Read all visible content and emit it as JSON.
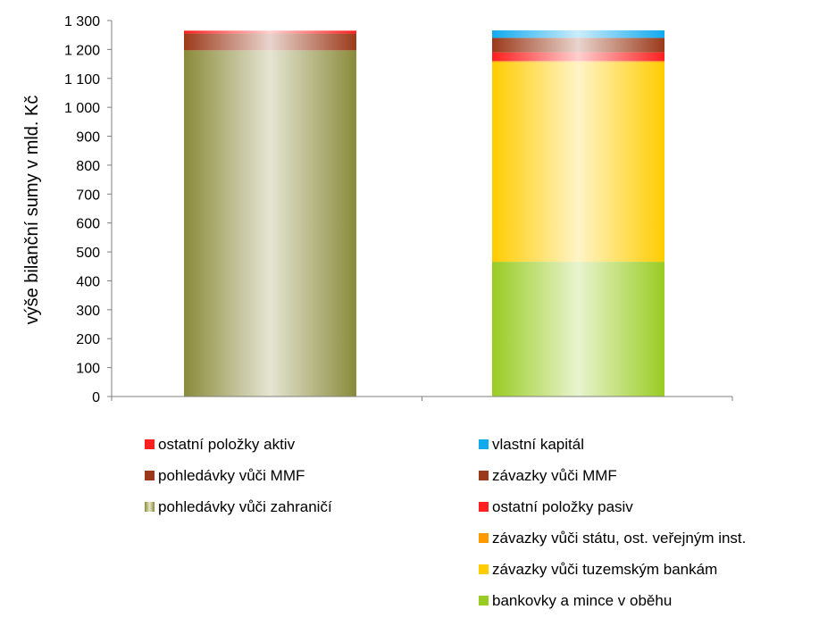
{
  "chart_data": {
    "type": "bar",
    "stacked": true,
    "title": "",
    "xlabel": "",
    "ylabel": "výše bilanční sumy v mld. Kč",
    "ylim": [
      0,
      1300
    ],
    "yticks": [
      0,
      100,
      200,
      300,
      400,
      500,
      600,
      700,
      800,
      900,
      1000,
      1100,
      1200,
      1300
    ],
    "ytick_labels": [
      "0",
      "100",
      "200",
      "300",
      "400",
      "500",
      "600",
      "700",
      "800",
      "900",
      "1 000",
      "1 100",
      "1 200",
      "1 300"
    ],
    "grid": false,
    "legend_position": "bottom",
    "categories": [
      "",
      ""
    ],
    "bars": [
      {
        "segments": [
          {
            "name": "pohledávky vůči zahraničí",
            "value": 1197,
            "color": "#8a8a3a"
          },
          {
            "name": "pohledávky vůči MMF",
            "value": 58,
            "color": "#9b3a1a"
          },
          {
            "name": "ostatní položky aktiv",
            "value": 10,
            "color": "#ff1f1f"
          }
        ]
      },
      {
        "segments": [
          {
            "name": "bankovky a mince v oběhu",
            "value": 466,
            "color": "#99cc22"
          },
          {
            "name": "závazky vůči tuzemským bankám",
            "value": 690,
            "color": "#ffcc00"
          },
          {
            "name": "závazky vůči státu, ost. veřejným inst.",
            "value": 4,
            "color": "#ff9900"
          },
          {
            "name": "ostatní položky pasiv",
            "value": 30,
            "color": "#ff1f1f"
          },
          {
            "name": "závazky vůči MMF",
            "value": 50,
            "color": "#9b3a1a"
          },
          {
            "name": "vlastní kapitál",
            "value": 26,
            "color": "#11aaee"
          }
        ]
      }
    ]
  },
  "legend": {
    "left": [
      {
        "label": "ostatní položky aktiv",
        "color": "#ff1f1f",
        "pattern": false
      },
      {
        "label": "pohledávky vůči MMF",
        "color": "#9b3a1a",
        "pattern": false
      },
      {
        "label": "pohledávky vůči zahraničí",
        "color": "#8a8a3a",
        "pattern": true
      }
    ],
    "right": [
      {
        "label": "vlastní kapitál",
        "color": "#11aaee",
        "pattern": false
      },
      {
        "label": "závazky vůči MMF",
        "color": "#9b3a1a",
        "pattern": false
      },
      {
        "label": "ostatní položky pasiv",
        "color": "#ff1f1f",
        "pattern": false
      },
      {
        "label": "závazky vůči státu, ost. veřejným inst.",
        "color": "#ff9900",
        "pattern": false
      },
      {
        "label": "závazky vůči tuzemským bankám",
        "color": "#ffcc00",
        "pattern": false
      },
      {
        "label": "bankovky a mince v oběhu",
        "color": "#99cc22",
        "pattern": false
      }
    ]
  }
}
